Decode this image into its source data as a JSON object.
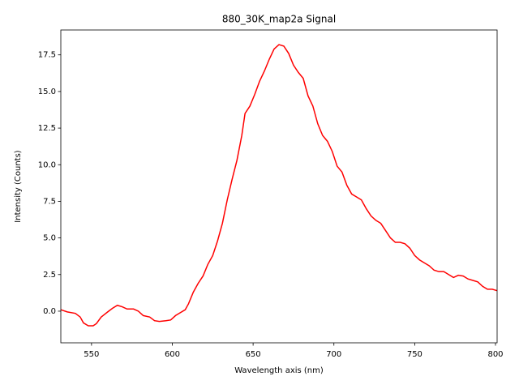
{
  "chart_data": {
    "type": "line",
    "title": "880_30K_map2a Signal",
    "x_label": "Wavelength axis (nm)",
    "y_label": "Intensity (Counts)",
    "x": [
      531,
      535,
      540,
      543,
      545,
      548,
      551,
      553,
      556,
      560,
      563,
      566,
      569,
      572,
      576,
      579,
      582,
      586,
      589,
      592,
      596,
      599,
      602,
      605,
      608,
      610,
      613,
      616,
      619,
      622,
      625,
      628,
      631,
      634,
      637,
      640,
      643,
      645,
      648,
      651,
      654,
      657,
      660,
      663,
      666,
      669,
      672,
      675,
      678,
      681,
      684,
      687,
      690,
      693,
      696,
      699,
      702,
      705,
      708,
      711,
      714,
      717,
      720,
      723,
      726,
      729,
      732,
      735,
      738,
      741,
      744,
      747,
      750,
      753,
      756,
      759,
      762,
      765,
      768,
      771,
      774,
      777,
      780,
      783,
      786,
      789,
      792,
      795,
      798,
      801
    ],
    "series": [
      {
        "name": "Signal",
        "color": "#ff0000",
        "values": [
          0.1,
          -0.05,
          -0.15,
          -0.4,
          -0.8,
          -1.0,
          -1.0,
          -0.85,
          -0.4,
          -0.05,
          0.2,
          0.4,
          0.3,
          0.15,
          0.15,
          0.0,
          -0.3,
          -0.4,
          -0.65,
          -0.7,
          -0.65,
          -0.6,
          -0.3,
          -0.1,
          0.1,
          0.5,
          1.3,
          1.9,
          2.4,
          3.2,
          3.8,
          4.8,
          6.0,
          7.6,
          9.0,
          10.3,
          12.0,
          13.5,
          14.0,
          14.8,
          15.7,
          16.4,
          17.2,
          17.9,
          18.2,
          18.1,
          17.6,
          16.8,
          16.3,
          15.9,
          14.7,
          14.0,
          12.8,
          12.0,
          11.6,
          10.9,
          9.9,
          9.5,
          8.6,
          8.0,
          7.8,
          7.6,
          7.0,
          6.5,
          6.2,
          6.0,
          5.5,
          5.0,
          4.7,
          4.7,
          4.6,
          4.3,
          3.8,
          3.5,
          3.3,
          3.1,
          2.8,
          2.7,
          2.7,
          2.5,
          2.3,
          2.45,
          2.4,
          2.2,
          2.1,
          2.0,
          1.7,
          1.5,
          1.5,
          1.4
        ]
      }
    ],
    "xlim": [
      531,
      801
    ],
    "ylim": [
      -2.16,
      19.2
    ],
    "xticks": [
      550,
      600,
      650,
      700,
      750,
      800
    ],
    "yticks": [
      {
        "value": 0,
        "label": "0.0"
      },
      2.5,
      {
        "value": 5,
        "label": "5.0"
      },
      7.5,
      {
        "value": 10,
        "label": "10.0"
      },
      12.5,
      {
        "value": 15,
        "label": "15.0"
      },
      17.5
    ],
    "grid": false
  }
}
